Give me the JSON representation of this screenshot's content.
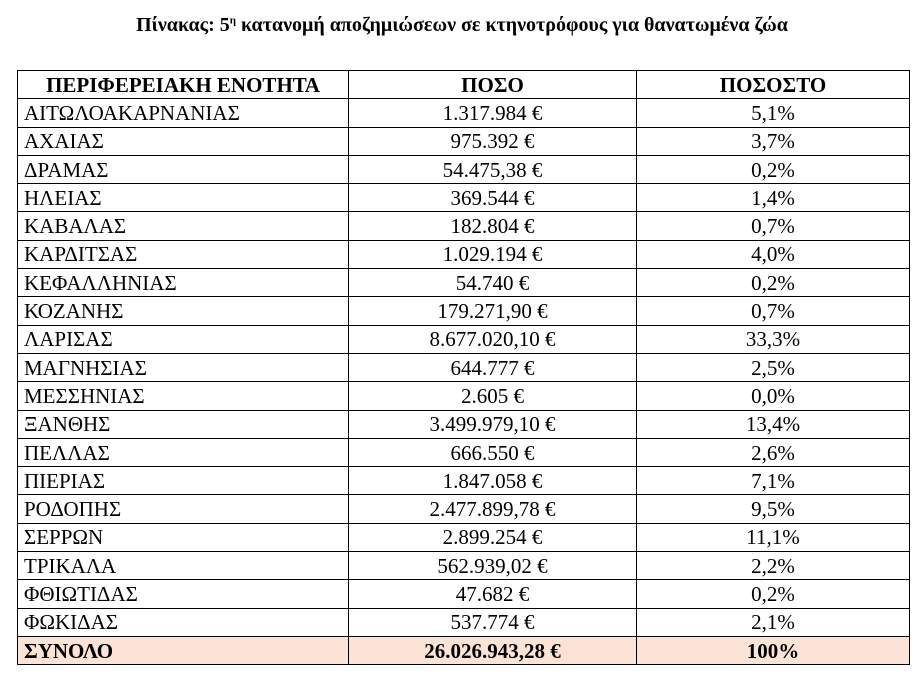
{
  "title": {
    "prefix": "Πίνακας: 5",
    "superscript": "η",
    "suffix": " κατανομή αποζημιώσεων σε κτηνοτρόφους για θανατωμένα ζώα"
  },
  "table": {
    "header": [
      "ΠΕΡΙΦΕΡΕΙΑΚΗ ΕΝΟΤΗΤΑ",
      "ΠΟΣΟ",
      "ΠΟΣΟΣΤΟ"
    ],
    "rows": [
      [
        "ΑΙΤΩΛΟΑΚΑΡΝΑΝΙΑΣ",
        "1.317.984 €",
        "5,1%"
      ],
      [
        "ΑΧΑΙΑΣ",
        "975.392 €",
        "3,7%"
      ],
      [
        "ΔΡΑΜΑΣ",
        "54.475,38 €",
        "0,2%"
      ],
      [
        "ΗΛΕΙΑΣ",
        "369.544 €",
        "1,4%"
      ],
      [
        "ΚΑΒΑΛΑΣ",
        "182.804 €",
        "0,7%"
      ],
      [
        "ΚΑΡΔΙΤΣΑΣ",
        "1.029.194 €",
        "4,0%"
      ],
      [
        "ΚΕΦΑΛΛΗΝΙΑΣ",
        "54.740 €",
        "0,2%"
      ],
      [
        "ΚΟΖΑΝΗΣ",
        "179.271,90 €",
        "0,7%"
      ],
      [
        "ΛΑΡΙΣΑΣ",
        "8.677.020,10 €",
        "33,3%"
      ],
      [
        "ΜΑΓΝΗΣΙΑΣ",
        "644.777 €",
        "2,5%"
      ],
      [
        "ΜΕΣΣΗΝΙΑΣ",
        "2.605 €",
        "0,0%"
      ],
      [
        "ΞΑΝΘΗΣ",
        "3.499.979,10 €",
        "13,4%"
      ],
      [
        "ΠΕΛΛΑΣ",
        "666.550 €",
        "2,6%"
      ],
      [
        "ΠΙΕΡΙΑΣ",
        "1.847.058 €",
        "7,1%"
      ],
      [
        "ΡΟΔΟΠΗΣ",
        "2.477.899,78 €",
        "9,5%"
      ],
      [
        "ΣΕΡΡΩΝ",
        "2.899.254 €",
        "11,1%"
      ],
      [
        "ΤΡΙΚΑΛΑ",
        "562.939,02 €",
        "2,2%"
      ],
      [
        "ΦΘΙΩΤΙΔΑΣ",
        "47.682 €",
        "0,2%"
      ],
      [
        "ΦΩΚΙΔΑΣ",
        "537.774 €",
        "2,1%"
      ]
    ],
    "total": [
      "ΣΥΝΟΛΟ",
      "26.026.943,28 €",
      "100%"
    ]
  }
}
